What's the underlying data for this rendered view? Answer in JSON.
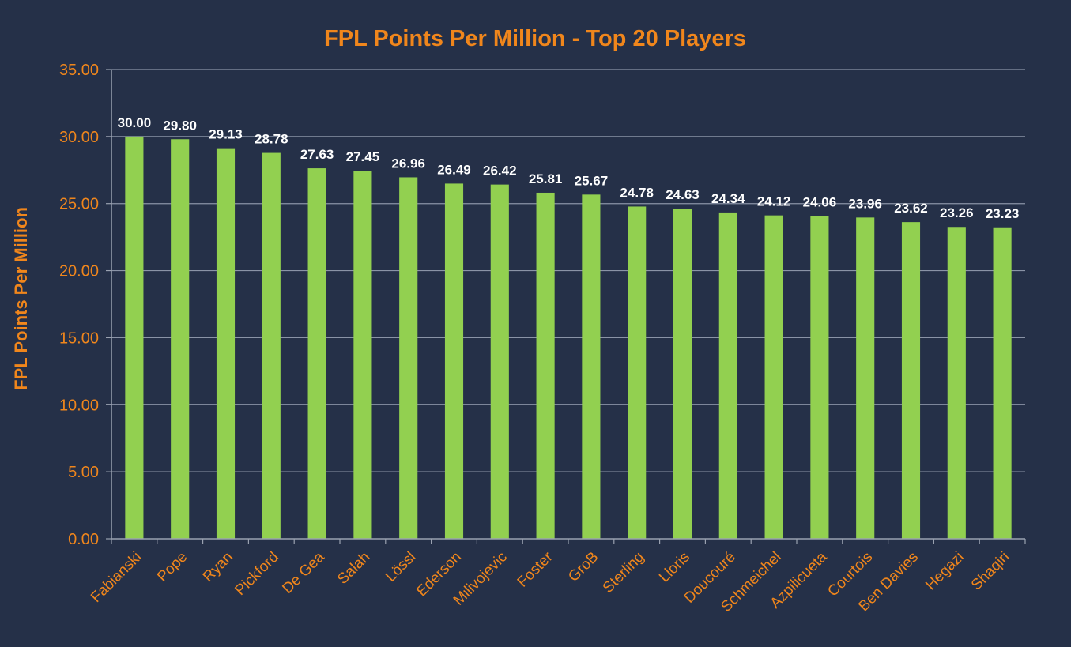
{
  "chart_data": {
    "type": "bar",
    "title": "FPL Points Per Million - Top 20 Players",
    "xlabel": "",
    "ylabel": "FPL Points Per Million",
    "ylim": [
      0,
      35
    ],
    "yticks": [
      "0.00",
      "5.00",
      "10.00",
      "15.00",
      "20.00",
      "25.00",
      "30.00",
      "35.00"
    ],
    "grid": true,
    "categories": [
      "Fabianski",
      "Pope",
      "Ryan",
      "Pickford",
      "De Gea",
      "Salah",
      "Lössl",
      "Ederson",
      "Milivojevic",
      "Foster",
      "GroB",
      "Sterling",
      "Lloris",
      "Doucouré",
      "Schmeichel",
      "Azpilicueta",
      "Courtois",
      "Ben Davies",
      "Hegazi",
      "Shaqiri"
    ],
    "values": [
      30.0,
      29.8,
      29.13,
      28.78,
      27.63,
      27.45,
      26.96,
      26.49,
      26.42,
      25.81,
      25.67,
      24.78,
      24.63,
      24.34,
      24.12,
      24.06,
      23.96,
      23.62,
      23.26,
      23.23
    ],
    "value_labels": [
      "30.00",
      "29.80",
      "29.13",
      "28.78",
      "27.63",
      "27.45",
      "26.96",
      "26.49",
      "26.42",
      "25.81",
      "25.67",
      "24.78",
      "24.63",
      "24.34",
      "24.12",
      "24.06",
      "23.96",
      "23.62",
      "23.26",
      "23.23"
    ],
    "colors": {
      "background": "#253048",
      "bar": "#92d050",
      "accent": "#f0861c",
      "grid": "#8a93a6",
      "axis": "#9aa1b0",
      "value_label": "#ffffff"
    }
  }
}
